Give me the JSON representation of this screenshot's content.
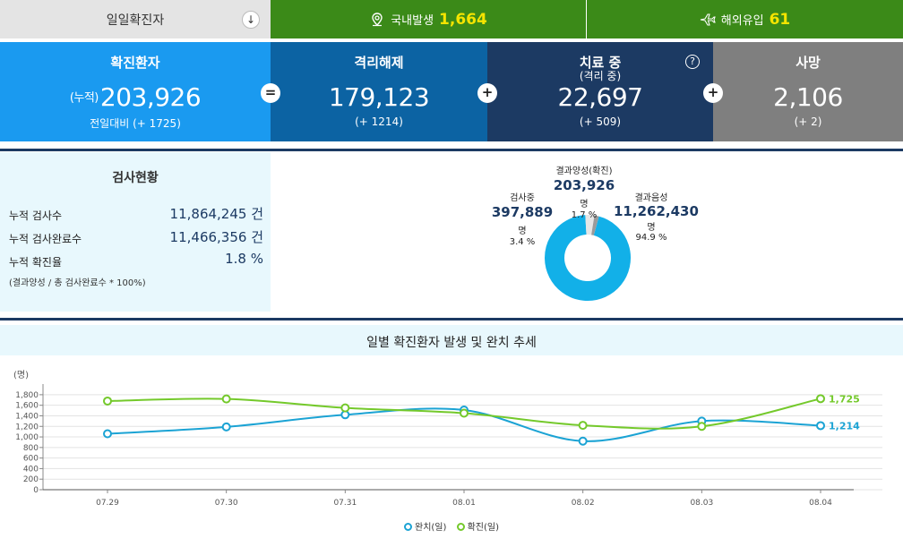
{
  "top": {
    "daily_label": "일일확진자",
    "arrow_icon": "↓",
    "domestic": {
      "label": "국내발생",
      "value": "1,664",
      "icon": "map-pin-icon"
    },
    "imported": {
      "label": "해외유입",
      "value": "61",
      "icon": "airplane-icon"
    }
  },
  "stats": {
    "confirmed": {
      "title": "확진환자",
      "prefix": "(누적)",
      "value": "203,926",
      "delta": "전일대비 (+ 1725)"
    },
    "released": {
      "title": "격리해제",
      "value": "179,123",
      "delta": "(+ 1214)"
    },
    "treating": {
      "title": "치료 중",
      "sub": "(격리 중)",
      "value": "22,697",
      "delta": "(+ 509)",
      "help": "?"
    },
    "deaths": {
      "title": "사망",
      "value": "2,106",
      "delta": "(+ 2)"
    },
    "op_eq": "=",
    "op_plus": "+"
  },
  "tests": {
    "title": "검사현황",
    "rows": [
      {
        "label": "누적 검사수",
        "value": "11,864,245 건"
      },
      {
        "label": "누적 검사완료수",
        "value": "11,466,356 건"
      },
      {
        "label": "누적 확진율",
        "value": "1.8 %"
      }
    ],
    "note": "(결과양성 / 총 검사완료수 * 100%)",
    "donut": {
      "positive": {
        "label": "결과양성(확진)",
        "value": "203,926",
        "unit": "명",
        "pct": "1.7 %",
        "share": 1.7,
        "color": "#9a9a9a"
      },
      "testing": {
        "label": "검사중",
        "value": "397,889",
        "unit": "명",
        "pct": "3.4 %",
        "share": 3.4,
        "color": "#e6e6e6"
      },
      "negative": {
        "label": "결과음성",
        "value": "11,262,430",
        "unit": "명",
        "pct": "94.9 %",
        "share": 94.9,
        "color": "#12b0e8"
      }
    }
  },
  "trend": {
    "title": "일별 확진환자 발생 및 완치 추세",
    "unit": "(명)",
    "chart_data": {
      "type": "line",
      "categories": [
        "07.29",
        "07.30",
        "07.31",
        "08.01",
        "08.02",
        "08.03",
        "08.04"
      ],
      "yticks": [
        0,
        200,
        400,
        600,
        800,
        1000,
        1200,
        1400,
        1600,
        1800
      ],
      "ylim": [
        0,
        1900
      ],
      "series": [
        {
          "name": "완치(일)",
          "color": "#1ba3d4",
          "values": [
            1060,
            1190,
            1420,
            1510,
            920,
            1300,
            1214
          ],
          "end_label": "1,214"
        },
        {
          "name": "확진(일)",
          "color": "#74c92b",
          "values": [
            1680,
            1720,
            1550,
            1450,
            1220,
            1200,
            1725
          ],
          "end_label": "1,725"
        }
      ],
      "legend": "bottom"
    }
  }
}
